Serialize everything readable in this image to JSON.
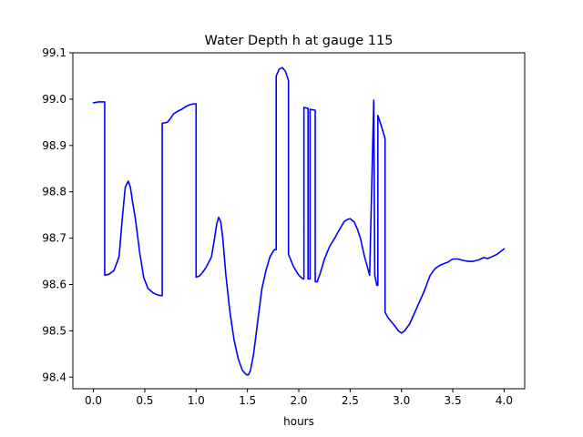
{
  "chart_data": {
    "type": "line",
    "title": "Water Depth h at gauge 115",
    "xlabel": "hours",
    "ylabel": "",
    "xlim": [
      -0.2,
      4.2
    ],
    "ylim": [
      98.375,
      99.1
    ],
    "xticks": [
      0.0,
      0.5,
      1.0,
      1.5,
      2.0,
      2.5,
      3.0,
      3.5,
      4.0
    ],
    "xtick_labels": [
      "0.0",
      "0.5",
      "1.0",
      "1.5",
      "2.0",
      "2.5",
      "3.0",
      "3.5",
      "4.0"
    ],
    "yticks": [
      98.4,
      98.5,
      98.6,
      98.7,
      98.8,
      98.9,
      99.0,
      99.1
    ],
    "ytick_labels": [
      "98.4",
      "98.5",
      "98.6",
      "98.7",
      "98.8",
      "98.9",
      "99.0",
      "99.1"
    ],
    "grid": false,
    "series": [
      {
        "color": "#0000ff",
        "x": [
          0.0,
          0.05,
          0.11,
          0.11,
          0.15,
          0.2,
          0.25,
          0.28,
          0.31,
          0.34,
          0.36,
          0.38,
          0.41,
          0.45,
          0.49,
          0.53,
          0.58,
          0.63,
          0.66,
          0.67,
          0.67,
          0.72,
          0.75,
          0.78,
          0.82,
          0.86,
          0.9,
          0.94,
          0.98,
          1.0,
          1.0,
          1.03,
          1.06,
          1.1,
          1.15,
          1.18,
          1.2,
          1.22,
          1.24,
          1.26,
          1.29,
          1.33,
          1.37,
          1.41,
          1.45,
          1.49,
          1.51,
          1.53,
          1.56,
          1.6,
          1.64,
          1.68,
          1.72,
          1.76,
          1.78,
          1.78,
          1.81,
          1.84,
          1.87,
          1.9,
          1.9,
          1.95,
          2.0,
          2.04,
          2.05,
          2.05,
          2.09,
          2.09,
          2.11,
          2.11,
          2.16,
          2.16,
          2.18,
          2.21,
          2.25,
          2.3,
          2.35,
          2.4,
          2.44,
          2.47,
          2.5,
          2.54,
          2.57,
          2.6,
          2.64,
          2.69,
          2.73,
          2.74,
          2.76,
          2.77,
          2.77,
          2.8,
          2.84,
          2.84,
          2.87,
          2.93,
          2.97,
          3.0,
          3.03,
          3.08,
          3.15,
          3.22,
          3.28,
          3.33,
          3.38,
          3.45,
          3.5,
          3.55,
          3.6,
          3.65,
          3.7,
          3.75,
          3.8,
          3.84,
          3.88,
          3.93,
          3.97,
          4.0
        ],
        "y": [
          98.992,
          98.994,
          98.994,
          98.62,
          98.622,
          98.63,
          98.66,
          98.74,
          98.81,
          98.823,
          98.81,
          98.78,
          98.74,
          98.67,
          98.615,
          98.592,
          98.582,
          98.577,
          98.576,
          98.576,
          98.948,
          98.95,
          98.958,
          98.968,
          98.974,
          98.978,
          98.984,
          98.988,
          98.99,
          98.99,
          98.616,
          98.618,
          98.625,
          98.638,
          98.66,
          98.7,
          98.73,
          98.745,
          98.735,
          98.7,
          98.62,
          98.54,
          98.48,
          98.44,
          98.415,
          98.405,
          98.405,
          98.415,
          98.45,
          98.52,
          98.59,
          98.63,
          98.66,
          98.675,
          98.675,
          99.05,
          99.065,
          99.068,
          99.06,
          99.04,
          98.665,
          98.638,
          98.62,
          98.612,
          98.612,
          98.982,
          98.98,
          98.612,
          98.612,
          98.978,
          98.976,
          98.606,
          98.606,
          98.625,
          98.655,
          98.682,
          98.7,
          98.72,
          98.735,
          98.74,
          98.742,
          98.735,
          98.72,
          98.7,
          98.66,
          98.62,
          98.998,
          98.62,
          98.598,
          98.598,
          98.965,
          98.945,
          98.915,
          98.54,
          98.528,
          98.512,
          98.5,
          98.495,
          98.5,
          98.515,
          98.55,
          98.585,
          98.62,
          98.635,
          98.642,
          98.648,
          98.655,
          98.655,
          98.652,
          98.65,
          98.65,
          98.653,
          98.658,
          98.656,
          98.66,
          98.665,
          98.672,
          98.677
        ]
      }
    ]
  }
}
